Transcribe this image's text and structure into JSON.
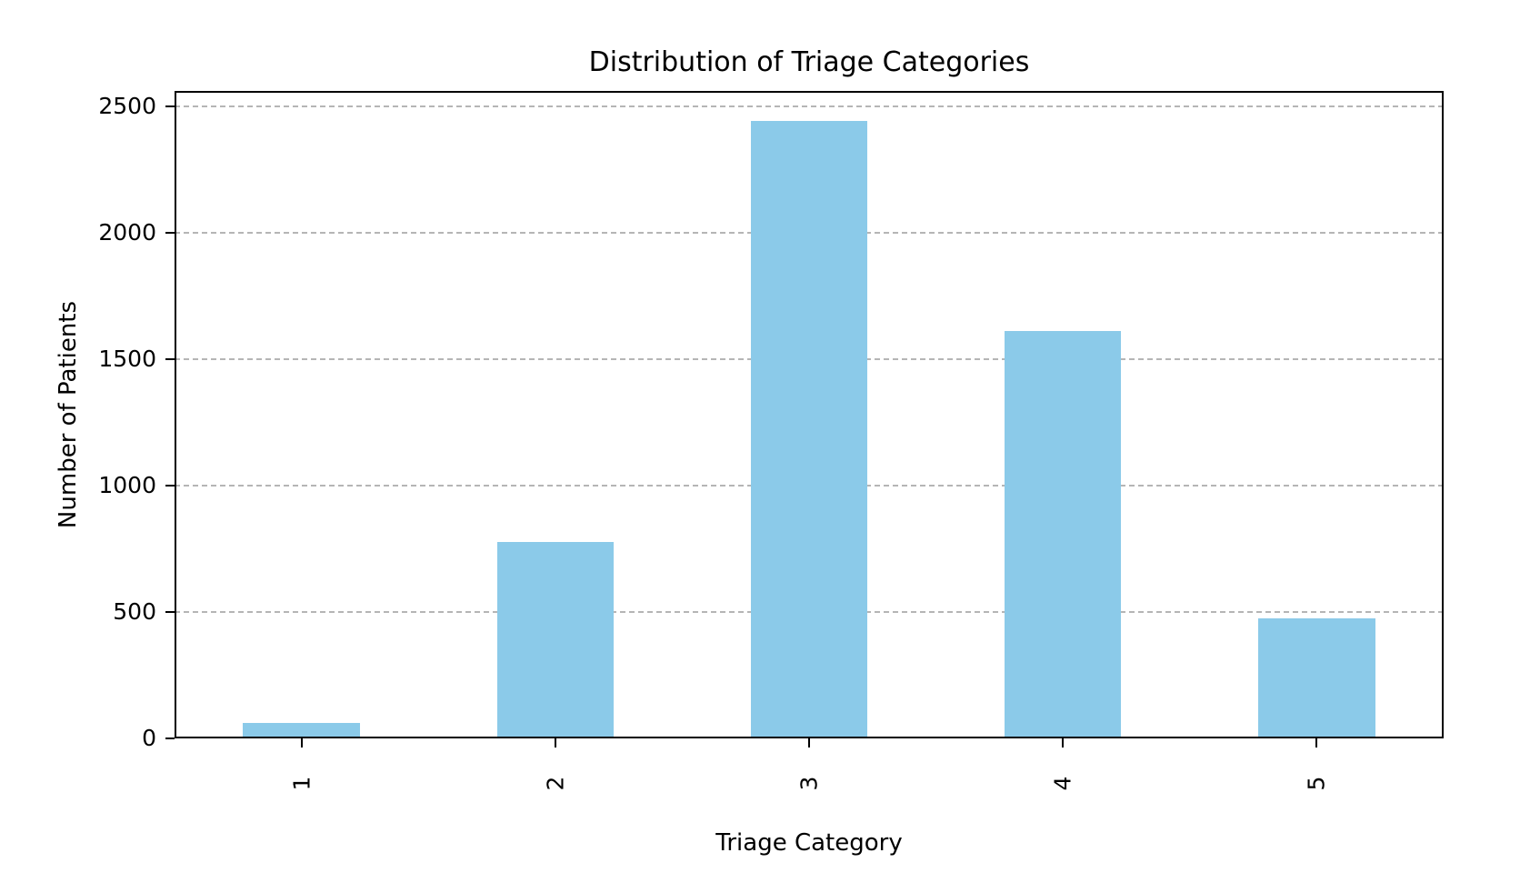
{
  "chart_data": {
    "type": "bar",
    "title": "Distribution of Triage Categories",
    "xlabel": "Triage Category",
    "ylabel": "Number of Patients",
    "categories": [
      "1",
      "2",
      "3",
      "4",
      "5"
    ],
    "values": [
      60,
      775,
      2440,
      1610,
      475
    ],
    "yticks": [
      0,
      500,
      1000,
      1500,
      2000,
      2500
    ],
    "ylim": [
      0,
      2560
    ],
    "bar_color": "#8BCAE9",
    "grid": true,
    "grid_color": "#b5b5b5",
    "legend": "none",
    "background": "#ffffff"
  }
}
